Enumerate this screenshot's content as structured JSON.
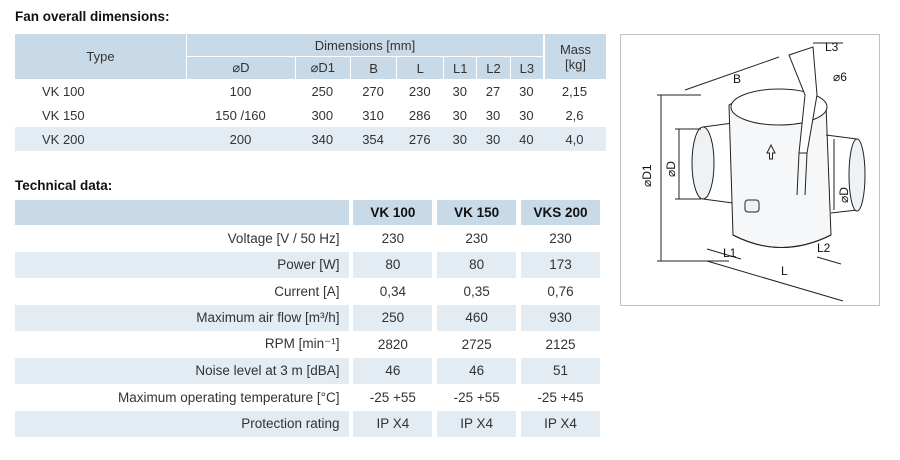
{
  "dimensions_section": {
    "title": "Fan overall dimensions:",
    "header": {
      "type": "Type",
      "dimensions": "Dimensions [mm]",
      "mass": "Mass",
      "mass_unit": "[kg]",
      "cols": [
        "⌀D",
        "⌀D1",
        "B",
        "L",
        "L1",
        "L2",
        "L3"
      ]
    },
    "rows": [
      {
        "type": "VK 100",
        "values": [
          "100",
          "250",
          "270",
          "230",
          "30",
          "27",
          "30"
        ],
        "mass": "2,15"
      },
      {
        "type": "VK 150",
        "values": [
          "150 /160",
          "300",
          "310",
          "286",
          "30",
          "30",
          "30"
        ],
        "mass": "2,6"
      },
      {
        "type": "VK 200",
        "values": [
          "200",
          "340",
          "354",
          "276",
          "30",
          "30",
          "40"
        ],
        "mass": "4,0"
      }
    ]
  },
  "technical_section": {
    "title": "Technical data:",
    "models": [
      "VK 100",
      "VK 150",
      "VKS 200"
    ],
    "rows": [
      {
        "label": "Voltage [V / 50 Hz]",
        "values": [
          "230",
          "230",
          "230"
        ]
      },
      {
        "label": "Power [W]",
        "values": [
          "80",
          "80",
          "173"
        ]
      },
      {
        "label": "Current [A]",
        "values": [
          "0,34",
          "0,35",
          "0,76"
        ]
      },
      {
        "label": "Maximum air flow [m³/h]",
        "values": [
          "250",
          "460",
          "930"
        ]
      },
      {
        "label": "RPM [min⁻¹]",
        "values": [
          "2820",
          "2725",
          "2125"
        ]
      },
      {
        "label": "Noise level at 3 m [dBA]",
        "values": [
          "46",
          "46",
          "51"
        ]
      },
      {
        "label": "Maximum operating temperature [°C]",
        "values": [
          "-25 +55",
          "-25 +55",
          "-25 +45"
        ]
      },
      {
        "label": "Protection rating",
        "values": [
          "IP X4",
          "IP X4",
          "IP X4"
        ]
      }
    ]
  },
  "diagram": {
    "labels": {
      "L3": "L3",
      "hole": "⌀6",
      "B": "B",
      "D1": "⌀D1",
      "D_left": "⌀D",
      "D_right": "⌀D",
      "L1": "L1",
      "L2": "L2",
      "L": "L"
    }
  }
}
